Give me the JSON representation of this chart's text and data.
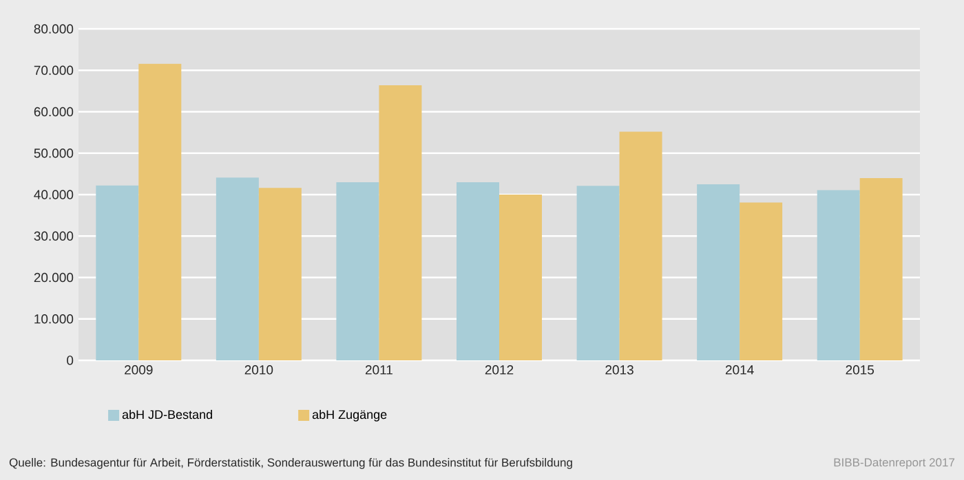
{
  "chart_data": {
    "type": "bar",
    "categories": [
      "2009",
      "2010",
      "2011",
      "2012",
      "2013",
      "2014",
      "2015"
    ],
    "series": [
      {
        "name": "abH JD-Bestand",
        "color": "#a8cdd7",
        "values": [
          42200,
          44100,
          43000,
          43000,
          42100,
          42500,
          41100
        ]
      },
      {
        "name": "abH Zugänge",
        "color": "#eac572",
        "values": [
          71600,
          41600,
          66400,
          40000,
          55200,
          38100,
          44000
        ]
      }
    ],
    "ylim": [
      0,
      80000
    ],
    "yticks": [
      {
        "value": 0,
        "label": "0"
      },
      {
        "value": 10000,
        "label": "10.000"
      },
      {
        "value": 20000,
        "label": "20.000"
      },
      {
        "value": 30000,
        "label": "30.000"
      },
      {
        "value": 40000,
        "label": "40.000"
      },
      {
        "value": 50000,
        "label": "50.000"
      },
      {
        "value": 60000,
        "label": "60.000"
      },
      {
        "value": 70000,
        "label": "70.000"
      },
      {
        "value": 80000,
        "label": "80.000"
      }
    ],
    "grid": "y",
    "legend": "bottom left",
    "annotations": [
      "Quelle: Bundesagentur für Arbeit, Förderstatistik, Sonderauswertung für das Bundesinstitut für Berufsbildung",
      "BIBB-Datenreport 2017"
    ]
  }
}
